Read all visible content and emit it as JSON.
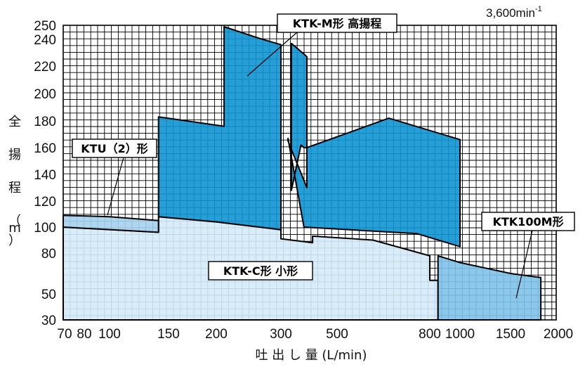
{
  "chart_data": {
    "type": "area",
    "speed_text": "3,600min",
    "speed_sup": "-1",
    "xlabel": "吐 出 し 量 (L/min)",
    "ylabel": [
      "全",
      "揚",
      "程",
      "（",
      "m",
      "）"
    ],
    "x_ticks": [
      "70",
      "80",
      "100",
      "150",
      "200",
      "300",
      "500",
      "800",
      "1000",
      "1500",
      "2000"
    ],
    "y_ticks": [
      "30",
      "50",
      "80",
      "100",
      "120",
      "140",
      "160",
      "180",
      "200",
      "220",
      "240",
      "250"
    ],
    "grid": true,
    "series": [
      {
        "name": "KTK-C形 小形",
        "color": "#d4ebf8",
        "points": [
          [
            70,
            100
          ],
          [
            140,
            96
          ],
          [
            140,
            108
          ],
          [
            200,
            104
          ],
          [
            300,
            98
          ],
          [
            300,
            91
          ],
          [
            400,
            88
          ],
          [
            400,
            93
          ],
          [
            600,
            90
          ],
          [
            800,
            78
          ],
          [
            800,
            60
          ],
          [
            850,
            60
          ],
          [
            850,
            30
          ],
          [
            70,
            30
          ]
        ]
      },
      {
        "name": "KTU（2）形",
        "color": "#a5d2f0",
        "points": [
          [
            70,
            109
          ],
          [
            100,
            108
          ],
          [
            140,
            105
          ],
          [
            140,
            96
          ],
          [
            70,
            100
          ]
        ]
      },
      {
        "name": "KTK-M形 高揚程",
        "color": "#0f93d1",
        "points": [
          [
            140,
            183
          ],
          [
            210,
            176
          ],
          [
            210,
            249
          ],
          [
            260,
            241
          ],
          [
            300,
            236
          ],
          [
            300,
            98
          ],
          [
            200,
            104
          ],
          [
            140,
            108
          ]
        ]
      },
      {
        "name": "KTK-M形 高揚程",
        "color": "#0f93d1",
        "points": [
          [
            330,
            237
          ],
          [
            370,
            229
          ],
          [
            380,
            227
          ],
          [
            380,
            130
          ],
          [
            320,
            165
          ],
          [
            320,
            167
          ],
          [
            370,
            100
          ],
          [
            750,
            95
          ],
          [
            1000,
            85
          ],
          [
            1000,
            166
          ],
          [
            650,
            182
          ],
          [
            380,
            160
          ],
          [
            370,
            160
          ],
          [
            360,
            162
          ],
          [
            330,
            128
          ]
        ]
      },
      {
        "name": "KTK100M形",
        "color": "#7fc2ea",
        "points": [
          [
            850,
            60
          ],
          [
            850,
            78
          ],
          [
            1000,
            73
          ],
          [
            1500,
            65
          ],
          [
            1800,
            62
          ],
          [
            1800,
            30
          ],
          [
            850,
            30
          ]
        ]
      }
    ],
    "annotations": [
      "KTK-M形 高揚程",
      "KTU（2）形",
      "KTK-C形 小形",
      "KTK100M形"
    ]
  }
}
